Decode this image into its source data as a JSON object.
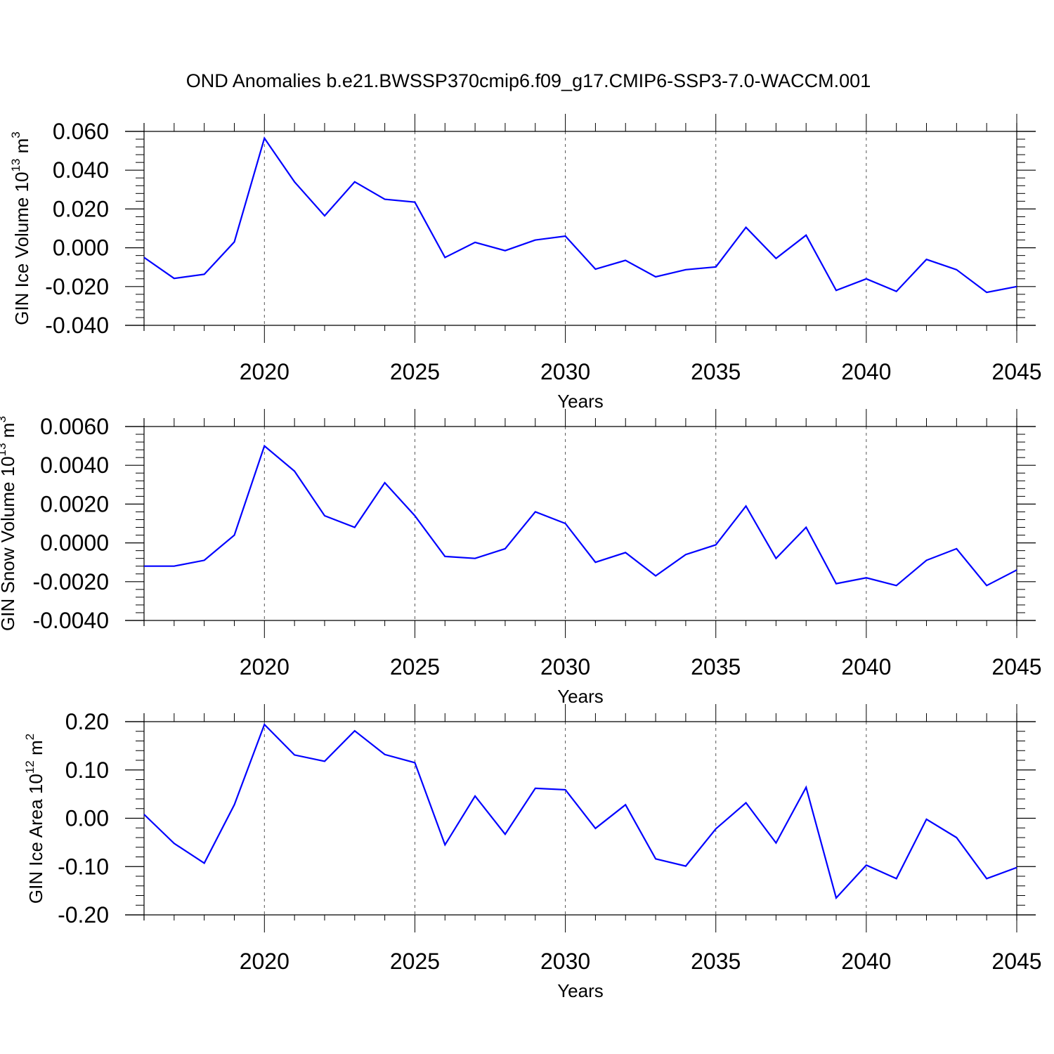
{
  "title": "OND Anomalies b.e21.BWSSP370cmip6.f09_g17.CMIP6-SSP3-7.0-WACCM.001",
  "colors": {
    "line": "#0000ff",
    "axis": "#000000",
    "grid": "#555555"
  },
  "chart_data": [
    {
      "type": "line",
      "ylabel": "GIN Ice Volume",
      "ylabel_unit_base": "10",
      "ylabel_unit_exp": "13",
      "ylabel_unit_sym": "m",
      "ylabel_unit_sym_exp": "3",
      "xlabel": "Years",
      "xlim": [
        2016,
        2045
      ],
      "ylim": [
        -0.04,
        0.065
      ],
      "yticks": [
        -0.04,
        -0.02,
        0.0,
        0.02,
        0.04,
        0.06
      ],
      "ytick_labels": [
        "-0.040",
        "-0.020",
        "0.000",
        "0.020",
        "0.040",
        "0.060"
      ],
      "xticks": [
        2020,
        2025,
        2030,
        2035,
        2040,
        2045
      ],
      "xtick_labels": [
        "2020",
        "2025",
        "2030",
        "2035",
        "2040",
        "2045"
      ],
      "gridlines_x": [
        2020,
        2025,
        2030,
        2035,
        2040
      ],
      "x": [
        2016,
        2017,
        2018,
        2019,
        2020,
        2021,
        2022,
        2023,
        2024,
        2025,
        2026,
        2027,
        2028,
        2029,
        2030,
        2031,
        2032,
        2033,
        2034,
        2035,
        2036,
        2037,
        2038,
        2039,
        2040,
        2041,
        2042,
        2043,
        2044,
        2045
      ],
      "values": [
        -0.005,
        -0.0158,
        -0.0137,
        0.003,
        0.0565,
        0.034,
        0.0165,
        0.034,
        0.025,
        0.0235,
        -0.005,
        0.0028,
        -0.0015,
        0.004,
        0.006,
        -0.011,
        -0.0065,
        -0.015,
        -0.0113,
        -0.0099,
        0.0105,
        -0.0055,
        0.0065,
        -0.022,
        -0.016,
        -0.0225,
        -0.006,
        -0.0113,
        -0.023,
        -0.02
      ]
    },
    {
      "type": "line",
      "ylabel": "GIN Snow Volume",
      "ylabel_unit_base": "10",
      "ylabel_unit_exp": "13",
      "ylabel_unit_sym": "m",
      "ylabel_unit_sym_exp": "3",
      "xlabel": "Years",
      "xlim": [
        2016,
        2045
      ],
      "ylim": [
        -0.004,
        0.0065
      ],
      "yticks": [
        -0.004,
        -0.002,
        0.0,
        0.002,
        0.004,
        0.006
      ],
      "ytick_labels": [
        "-0.0040",
        "-0.0020",
        "0.0000",
        "0.0020",
        "0.0040",
        "0.0060"
      ],
      "xticks": [
        2020,
        2025,
        2030,
        2035,
        2040,
        2045
      ],
      "xtick_labels": [
        "2020",
        "2025",
        "2030",
        "2035",
        "2040",
        "2045"
      ],
      "gridlines_x": [
        2020,
        2025,
        2030,
        2035,
        2040
      ],
      "x": [
        2016,
        2017,
        2018,
        2019,
        2020,
        2021,
        2022,
        2023,
        2024,
        2025,
        2026,
        2027,
        2028,
        2029,
        2030,
        2031,
        2032,
        2033,
        2034,
        2035,
        2036,
        2037,
        2038,
        2039,
        2040,
        2041,
        2042,
        2043,
        2044,
        2045
      ],
      "values": [
        -0.0012,
        -0.0012,
        -0.0009,
        0.0004,
        0.005,
        0.0037,
        0.0014,
        0.0008,
        0.0031,
        0.0014,
        -0.0007,
        -0.0008,
        -0.0003,
        0.0016,
        0.001,
        -0.001,
        -0.0005,
        -0.0017,
        -0.0006,
        -0.0001,
        0.0019,
        -0.0008,
        0.0008,
        -0.0021,
        -0.0018,
        -0.0022,
        -0.0009,
        -0.0003,
        -0.0022,
        -0.0014
      ]
    },
    {
      "type": "line",
      "ylabel": "GIN Ice Area",
      "ylabel_unit_base": "10",
      "ylabel_unit_exp": "12",
      "ylabel_unit_sym": "m",
      "ylabel_unit_sym_exp": "2",
      "xlabel": "Years",
      "xlim": [
        2016,
        2045
      ],
      "ylim": [
        -0.2,
        0.22
      ],
      "yticks": [
        -0.2,
        -0.1,
        0.0,
        0.1,
        0.2
      ],
      "ytick_labels": [
        "-0.20",
        "-0.10",
        "0.00",
        "0.10",
        "0.20"
      ],
      "xticks": [
        2020,
        2025,
        2030,
        2035,
        2040,
        2045
      ],
      "xtick_labels": [
        "2020",
        "2025",
        "2030",
        "2035",
        "2040",
        "2045"
      ],
      "gridlines_x": [
        2020,
        2025,
        2030,
        2035,
        2040
      ],
      "x": [
        2016,
        2017,
        2018,
        2019,
        2020,
        2021,
        2022,
        2023,
        2024,
        2025,
        2026,
        2027,
        2028,
        2029,
        2030,
        2031,
        2032,
        2033,
        2034,
        2035,
        2036,
        2037,
        2038,
        2039,
        2040,
        2041,
        2042,
        2043,
        2044,
        2045
      ],
      "values": [
        0.008,
        -0.052,
        -0.093,
        0.028,
        0.194,
        0.131,
        0.118,
        0.181,
        0.132,
        0.115,
        -0.055,
        0.046,
        -0.033,
        0.062,
        0.059,
        -0.021,
        0.028,
        -0.084,
        -0.099,
        -0.022,
        0.032,
        -0.051,
        0.064,
        -0.165,
        -0.097,
        -0.125,
        -0.002,
        -0.04,
        -0.125,
        -0.102
      ]
    }
  ]
}
